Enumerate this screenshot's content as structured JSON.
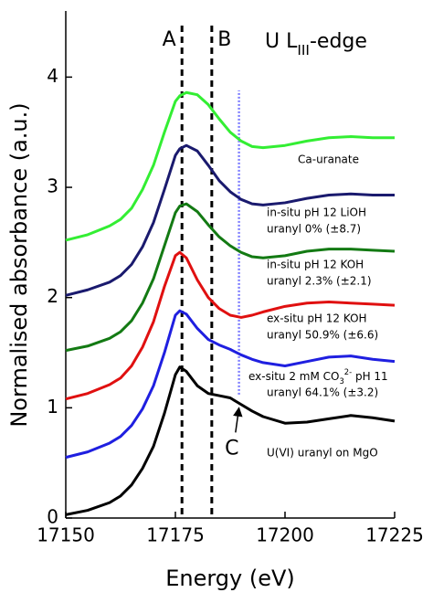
{
  "chart_data": {
    "type": "line",
    "xlabel": "Energy (eV)",
    "ylabel": "Normalised absorbance (a.u.)",
    "edge_label": [
      {
        "text": "U L"
      },
      {
        "text": "III",
        "shift": "sub"
      },
      {
        "text": "-edge"
      }
    ],
    "xlim": [
      17150,
      17225
    ],
    "xticks": [
      17150,
      17175,
      17200,
      17225
    ],
    "ylim": [
      0,
      4.6
    ],
    "yticks": [
      0,
      1,
      2,
      3,
      4
    ],
    "x": [
      17150,
      17155,
      17160,
      17162.5,
      17165,
      17167.5,
      17170,
      17172.5,
      17175,
      17176,
      17177.5,
      17180,
      17182.5,
      17185,
      17187.5,
      17190,
      17192.5,
      17195,
      17200,
      17205,
      17210,
      17215,
      17220,
      17225
    ],
    "series": [
      {
        "name": "U(VI) uranyl on MgO",
        "color": "#000000",
        "values": [
          0.03,
          0.07,
          0.14,
          0.2,
          0.3,
          0.45,
          0.65,
          0.95,
          1.3,
          1.37,
          1.33,
          1.2,
          1.13,
          1.11,
          1.09,
          1.03,
          0.97,
          0.92,
          0.86,
          0.87,
          0.9,
          0.93,
          0.91,
          0.88
        ]
      },
      {
        "name": [
          {
            "text": "ex-situ 2 mM CO"
          },
          {
            "text": "3",
            "shift": "sub"
          },
          {
            "text": "2-",
            "shift": "super"
          },
          {
            "text": " pH 11"
          }
        ],
        "note": "uranyl 64.1% (±3.2)",
        "color": "#1f1fe0",
        "values": [
          0.55,
          0.6,
          0.68,
          0.74,
          0.84,
          0.99,
          1.2,
          1.5,
          1.84,
          1.88,
          1.85,
          1.72,
          1.62,
          1.57,
          1.53,
          1.48,
          1.44,
          1.41,
          1.38,
          1.42,
          1.46,
          1.47,
          1.44,
          1.42
        ]
      },
      {
        "name": "ex-situ pH 12 KOH",
        "note": "uranyl 50.9% (±6.6)",
        "color": "#e01010",
        "values": [
          1.08,
          1.13,
          1.21,
          1.27,
          1.38,
          1.55,
          1.78,
          2.1,
          2.38,
          2.41,
          2.36,
          2.16,
          2.0,
          1.9,
          1.84,
          1.82,
          1.84,
          1.87,
          1.92,
          1.95,
          1.96,
          1.95,
          1.94,
          1.93
        ]
      },
      {
        "name": "in-situ pH 12 KOH",
        "note": "uranyl 2.3% (±2.1)",
        "color": "#137a13",
        "values": [
          1.52,
          1.56,
          1.63,
          1.69,
          1.79,
          1.95,
          2.17,
          2.47,
          2.77,
          2.83,
          2.85,
          2.78,
          2.66,
          2.55,
          2.47,
          2.41,
          2.37,
          2.36,
          2.38,
          2.42,
          2.44,
          2.44,
          2.43,
          2.42
        ]
      },
      {
        "name": "in-situ pH 12 LiOH",
        "note": "uranyl 0% (±8.7)",
        "color": "#1a1a6e",
        "values": [
          2.02,
          2.07,
          2.14,
          2.2,
          2.3,
          2.46,
          2.68,
          2.98,
          3.29,
          3.35,
          3.38,
          3.33,
          3.2,
          3.06,
          2.96,
          2.89,
          2.85,
          2.84,
          2.86,
          2.9,
          2.93,
          2.94,
          2.93,
          2.93
        ]
      },
      {
        "name": "Ca-uranate",
        "color": "#33ee33",
        "values": [
          2.52,
          2.57,
          2.65,
          2.71,
          2.81,
          2.98,
          3.2,
          3.5,
          3.78,
          3.83,
          3.86,
          3.84,
          3.75,
          3.62,
          3.5,
          3.42,
          3.37,
          3.36,
          3.38,
          3.42,
          3.45,
          3.46,
          3.45,
          3.45
        ]
      }
    ],
    "vlines": [
      {
        "label": "A",
        "x": 17176.5
      },
      {
        "label": "B",
        "x": 17183.3
      }
    ],
    "dotted_line": {
      "x": 17189.5,
      "y": [
        1.12,
        3.88
      ],
      "color": "#8080ff"
    },
    "arrow": {
      "label": "C",
      "x": 17188.3,
      "y": 0.66,
      "tip": [
        17189.5,
        1.0
      ]
    }
  }
}
